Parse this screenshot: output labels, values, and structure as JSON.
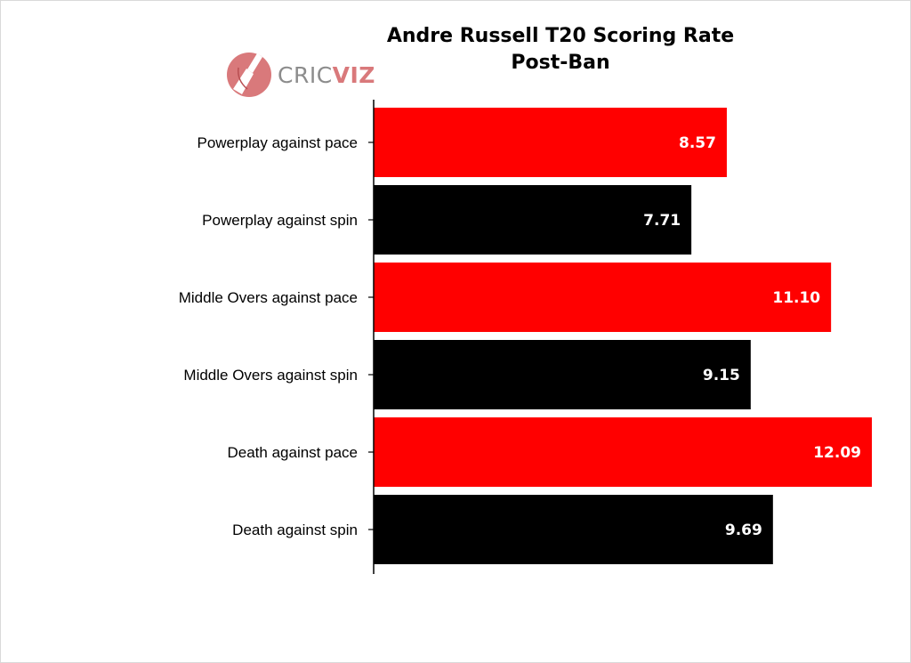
{
  "title_line1": "Andre Russell T20 Scoring Rate",
  "title_line2": "Post-Ban",
  "logo": {
    "part1": "CRIC",
    "part2": "VIZ",
    "icon": "cricket-bat-ball-icon"
  },
  "colors": {
    "pace": "#ff0000",
    "spin": "#000000",
    "label": "#ffffff"
  },
  "chart_data": {
    "type": "bar",
    "orientation": "horizontal",
    "title": "Andre Russell T20 Scoring Rate Post-Ban",
    "categories": [
      "Powerplay against pace",
      "Powerplay against spin",
      "Middle Overs against pace",
      "Middle Overs against spin",
      "Death against pace",
      "Death against spin"
    ],
    "values": [
      8.57,
      7.71,
      11.1,
      9.15,
      12.09,
      9.69
    ],
    "value_labels": [
      "8.57",
      "7.71",
      "11.10",
      "9.15",
      "12.09",
      "9.69"
    ],
    "bar_colors": [
      "#ff0000",
      "#000000",
      "#ff0000",
      "#000000",
      "#ff0000",
      "#000000"
    ],
    "xlim": [
      0,
      12.09
    ],
    "xlabel": "",
    "ylabel": "",
    "grid": false,
    "legend": "none"
  }
}
